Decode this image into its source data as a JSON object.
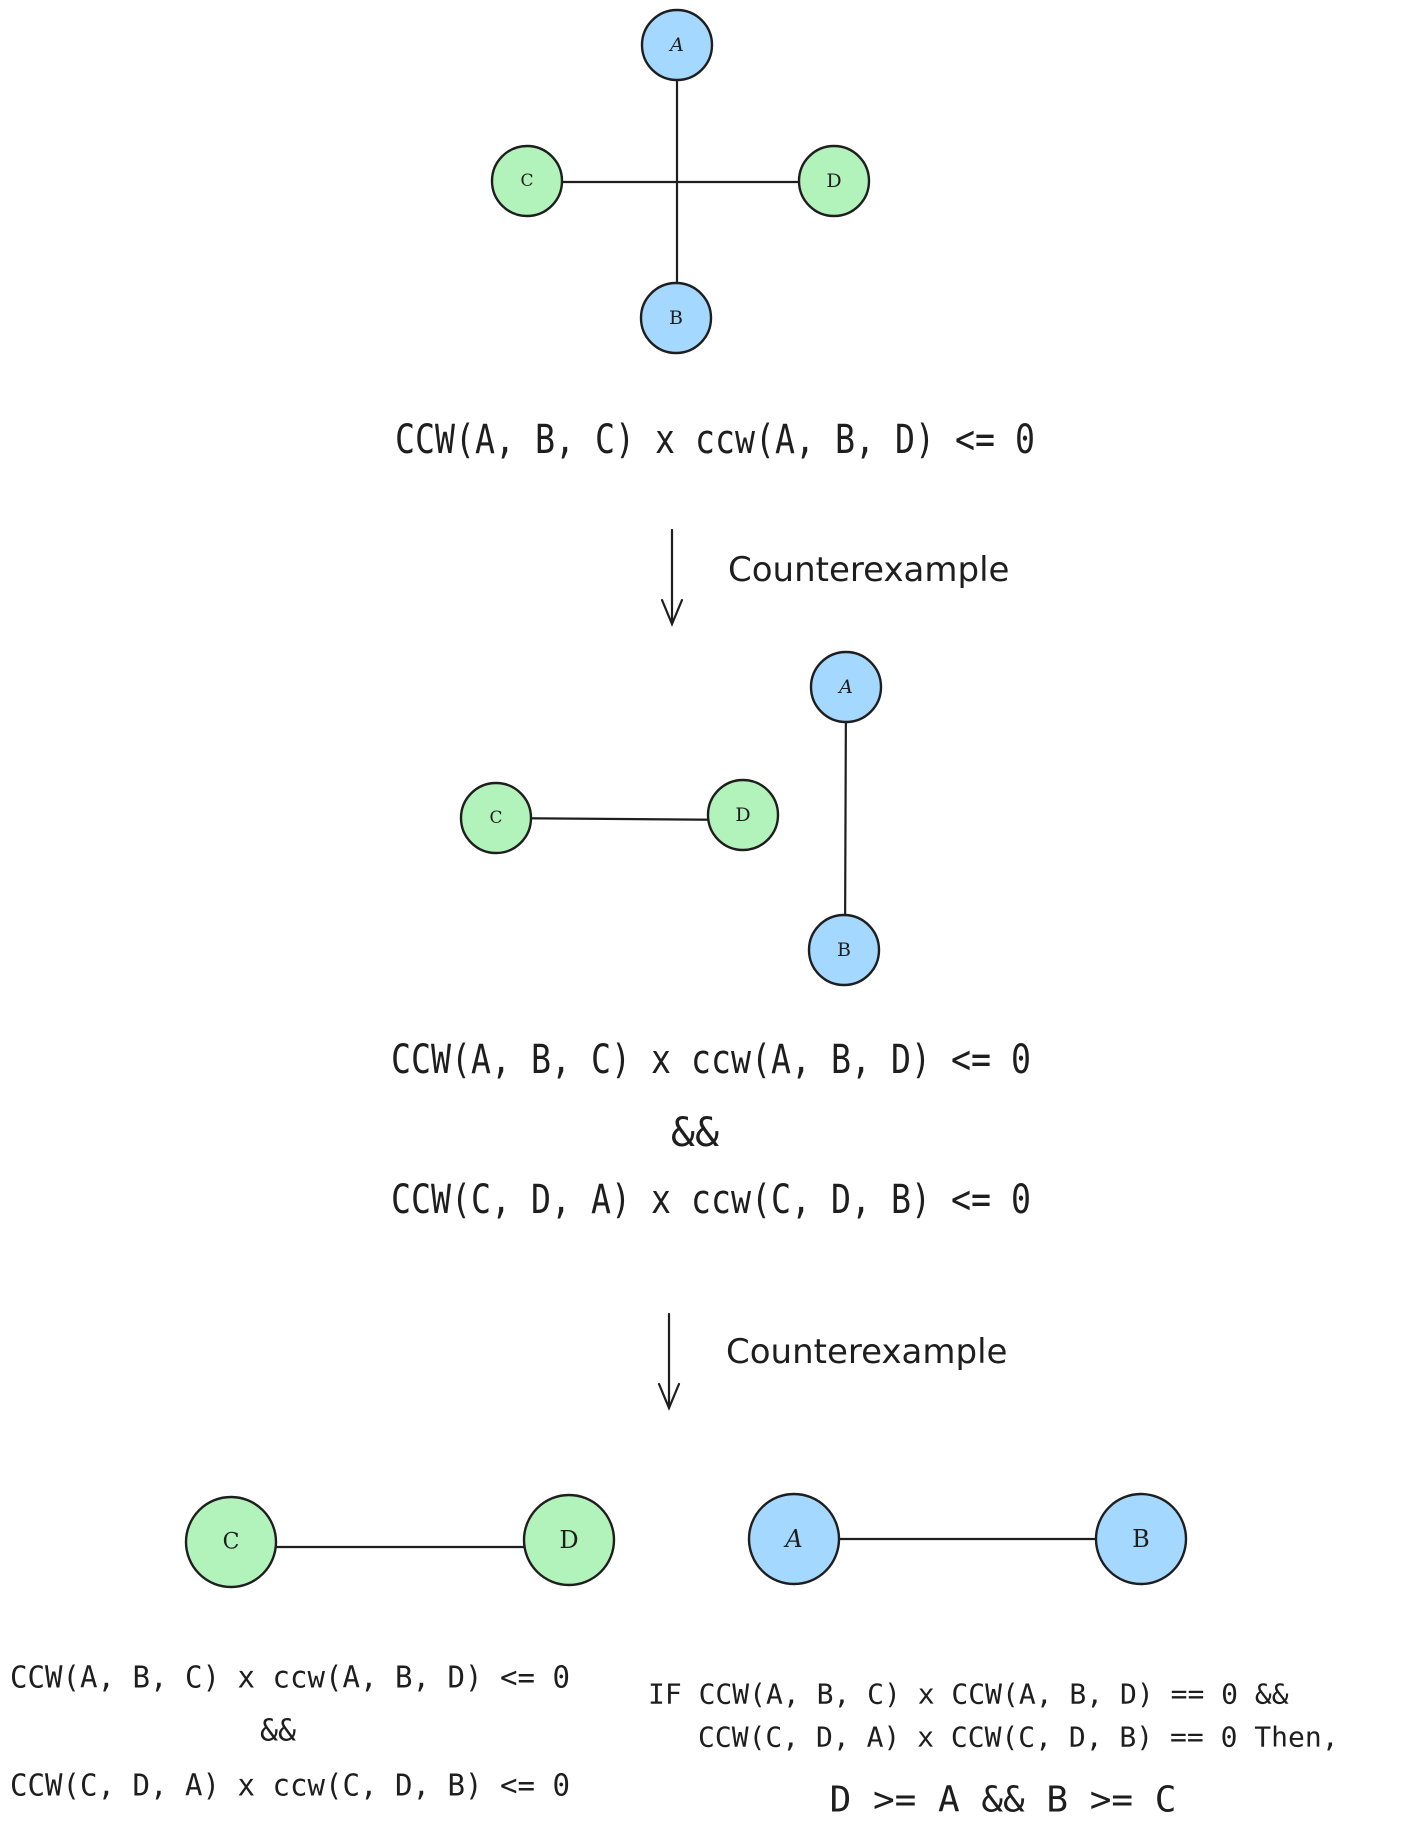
{
  "colors": {
    "node_blue": "#a5d8ff",
    "node_green": "#b2f2bb",
    "ink": "#1e1e1e"
  },
  "diagram1": {
    "nodes": {
      "a": "A",
      "b": "B",
      "c": "C",
      "d": "D"
    },
    "formula": "CCW(A, B, C) x ccw(A, B, D) <= 0"
  },
  "arrow1": {
    "label": "Counterexample"
  },
  "diagram2": {
    "nodes": {
      "a": "A",
      "b": "B",
      "c": "C",
      "d": "D"
    },
    "formula_line1": "CCW(A, B, C) x ccw(A, B, D) <= 0",
    "formula_and": "&&",
    "formula_line2": "CCW(C, D, A) x ccw(C, D, B) <= 0"
  },
  "arrow2": {
    "label": "Counterexample"
  },
  "diagram3": {
    "nodes": {
      "a": "A",
      "b": "B",
      "c": "C",
      "d": "D"
    },
    "left_formula_line1": "CCW(A, B, C) x ccw(A, B, D) <= 0",
    "left_formula_and": "&&",
    "left_formula_line2": "CCW(C, D, A) x ccw(C, D, B) <= 0",
    "right_formula_line1": "IF CCW(A, B, C) x CCW(A, B, D) == 0 &&",
    "right_formula_line2": "CCW(C, D, A) x CCW(C, D, B) == 0 Then,",
    "right_conclusion": "D >= A && B >= C"
  }
}
